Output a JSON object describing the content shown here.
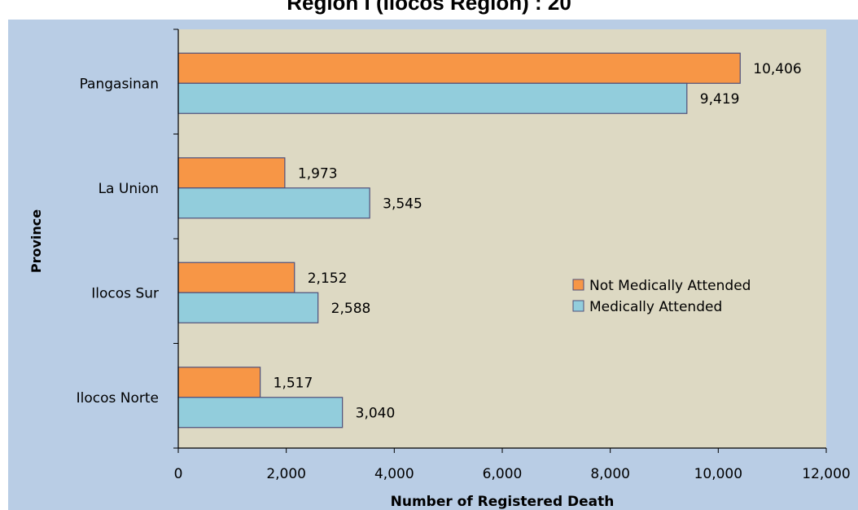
{
  "chart_data": {
    "type": "bar",
    "orientation": "horizontal",
    "title": "Region I (Ilocos Region) : 20",
    "xlabel": "Number of Registered Death",
    "ylabel": "Province",
    "categories": [
      "Pangasinan",
      "La Union",
      "Ilocos Sur",
      "Ilocos Norte"
    ],
    "series": [
      {
        "name": "Not Medically Attended",
        "values": [
          10406,
          1973,
          2152,
          1517
        ],
        "labels": [
          "10,406",
          "1,973",
          "2,152",
          "1,517"
        ],
        "color": "#f79646"
      },
      {
        "name": "Medically Attended",
        "values": [
          9419,
          3545,
          2588,
          3040
        ],
        "labels": [
          "9,419",
          "3,545",
          "2,588",
          "3,040"
        ],
        "color": "#92cddc"
      }
    ],
    "xlim": [
      0,
      12000
    ],
    "xticks": [
      0,
      2000,
      4000,
      6000,
      8000,
      10000,
      12000
    ],
    "xtick_labels": [
      "0",
      "2,000",
      "4,000",
      "6,000",
      "8,000",
      "10,000",
      "12,000"
    ],
    "legend_position": "right",
    "plot_background": "#ddd9c3",
    "outer_background": "#b9cde5",
    "grid": false
  }
}
